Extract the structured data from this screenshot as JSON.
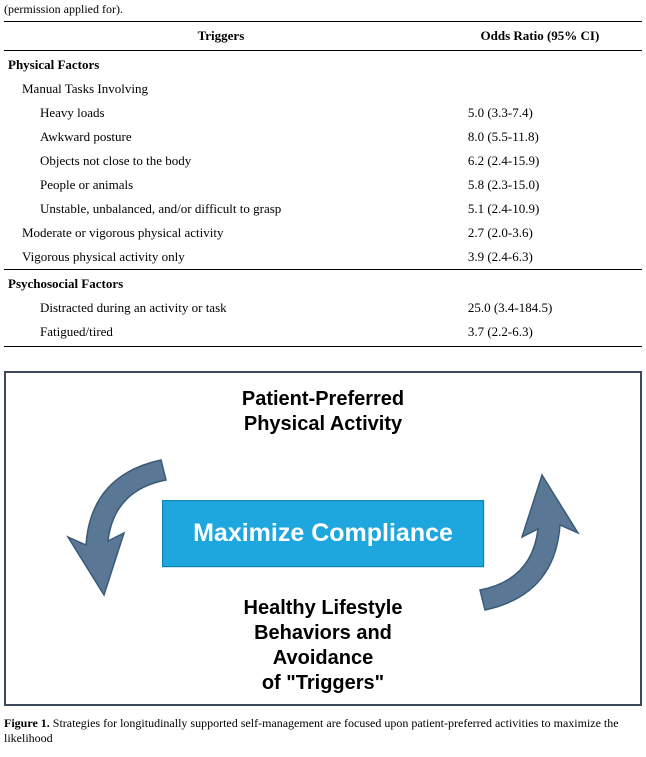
{
  "table": {
    "caption_top": "(permission applied for).",
    "headers": {
      "trigger": "Triggers",
      "odds": "Odds Ratio (95% CI)"
    },
    "sections": [
      {
        "title": "Physical Factors",
        "subheading": "Manual Tasks Involving",
        "rows": [
          {
            "label": "Heavy loads",
            "value": "5.0 (3.3-7.4)",
            "indent": 2
          },
          {
            "label": "Awkward posture",
            "value": "8.0 (5.5-11.8)",
            "indent": 2
          },
          {
            "label": "Objects not close to the body",
            "value": "6.2 (2.4-15.9)",
            "indent": 2
          },
          {
            "label": "People or animals",
            "value": "5.8 (2.3-15.0)",
            "indent": 2
          },
          {
            "label": "Unstable, unbalanced, and/or difficult to grasp",
            "value": "5.1 (2.4-10.9)",
            "indent": 2
          },
          {
            "label": "Moderate or vigorous physical activity",
            "value": "2.7 (2.0-3.6)",
            "indent": 1
          },
          {
            "label": "Vigorous physical activity only",
            "value": "3.9 (2.4-6.3)",
            "indent": 1
          }
        ]
      },
      {
        "title": "Psychosocial Factors",
        "rows": [
          {
            "label": "Distracted during an activity or task",
            "value": "25.0 (3.4-184.5)",
            "indent": 2
          },
          {
            "label": "Fatigued/tired",
            "value": "3.7 (2.2-6.3)",
            "indent": 2
          }
        ]
      }
    ]
  },
  "figure": {
    "top_text": "Patient-Preferred\nPhysical Activity",
    "center_text": "Maximize Compliance",
    "bottom_text": "Healthy Lifestyle\nBehaviors and\nAvoidance\nof \"Triggers\"",
    "arrow_fill": "#5a7896",
    "arrow_stroke": "#3a5a78",
    "box_fill": "#1ea6de",
    "box_text_color": "#ffffff",
    "border_color": "#3a4a5a"
  },
  "caption_bottom": {
    "label": "Figure 1.",
    "text": " Strategies for longitudinally supported self-management are focused upon patient-preferred activities to maximize the likelihood"
  }
}
